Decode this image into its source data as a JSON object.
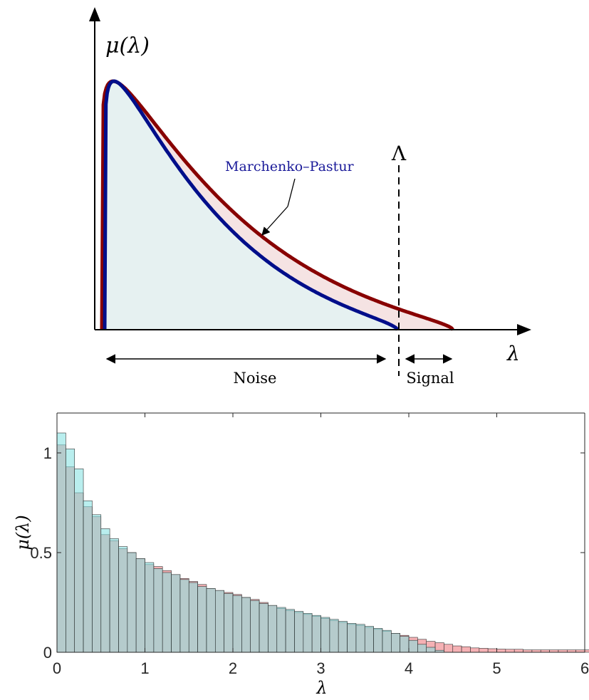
{
  "chart_data": [
    {
      "type": "area",
      "schematic": true,
      "ylabel": "μ(λ)",
      "xlabel": "λ",
      "threshold_label": "Λ",
      "annotation": "Marchenko–Pastur",
      "regions": [
        {
          "label": "Noise"
        },
        {
          "label": "Signal"
        }
      ],
      "colors": {
        "marchenko_pastur_line": "#000e8a",
        "marchenko_pastur_fill": "#e6f1f1",
        "empirical_line": "#880000",
        "empirical_fill": "#f5e3e3",
        "annotation_text": "#1a1a99"
      }
    },
    {
      "type": "bar",
      "histogram": true,
      "xlabel": "λ",
      "ylabel": "μ(λ)",
      "xlim": [
        0,
        6
      ],
      "ylim": [
        0,
        1.2
      ],
      "xticks": [
        "0",
        "1",
        "2",
        "3",
        "4",
        "5",
        "6"
      ],
      "yticks": [
        "0",
        "0.5",
        "1"
      ],
      "bin_width": 0.1,
      "series": [
        {
          "color": "#f3a3a7",
          "values": [
            1.04,
            0.93,
            0.8,
            0.73,
            0.68,
            0.59,
            0.56,
            0.52,
            0.5,
            0.47,
            0.44,
            0.43,
            0.41,
            0.39,
            0.37,
            0.355,
            0.34,
            0.32,
            0.31,
            0.3,
            0.29,
            0.275,
            0.265,
            0.25,
            0.235,
            0.22,
            0.21,
            0.2,
            0.19,
            0.18,
            0.17,
            0.16,
            0.15,
            0.14,
            0.135,
            0.125,
            0.115,
            0.105,
            0.095,
            0.085,
            0.075,
            0.065,
            0.055,
            0.048,
            0.04,
            0.032,
            0.028,
            0.022,
            0.02,
            0.018,
            0.016,
            0.015,
            0.015,
            0.012,
            0.012,
            0.012,
            0.012,
            0.012,
            0.012,
            0.012,
            0.012,
            0.01,
            0.012,
            0.012,
            0.01,
            0.01,
            0.01,
            0.01,
            0.008,
            0.008,
            0.008,
            0.008,
            0.01,
            0.008,
            0.008,
            0.008,
            0.008,
            0.01,
            0.008,
            0.008,
            0.008,
            0.005,
            0.005,
            0.005,
            0.005,
            0.005,
            0.005,
            0.005,
            0.0,
            0.0
          ]
        },
        {
          "color": "#7fe0e0",
          "values": [
            1.1,
            1.02,
            0.92,
            0.76,
            0.69,
            0.62,
            0.57,
            0.53,
            0.5,
            0.47,
            0.45,
            0.42,
            0.4,
            0.39,
            0.365,
            0.35,
            0.33,
            0.32,
            0.31,
            0.295,
            0.285,
            0.275,
            0.26,
            0.245,
            0.235,
            0.225,
            0.215,
            0.205,
            0.195,
            0.185,
            0.175,
            0.165,
            0.155,
            0.145,
            0.14,
            0.13,
            0.12,
            0.11,
            0.095,
            0.08,
            0.06,
            0.04,
            0.025,
            0.01,
            0.0,
            0.0,
            0.0,
            0.0,
            0.0,
            0.0,
            0.0,
            0.0,
            0.0,
            0.0,
            0.0,
            0.0,
            0.0,
            0.0,
            0.0,
            0.0,
            0.0,
            0.0,
            0.0,
            0.0,
            0.0,
            0.0,
            0.0,
            0.0,
            0.0,
            0.0,
            0.0,
            0.0,
            0.0,
            0.0,
            0.0,
            0.0,
            0.0,
            0.0,
            0.0,
            0.0,
            0.0,
            0.0,
            0.0,
            0.0,
            0.0,
            0.0,
            0.0,
            0.0,
            0.0,
            0.0
          ]
        }
      ],
      "grid": false
    }
  ]
}
